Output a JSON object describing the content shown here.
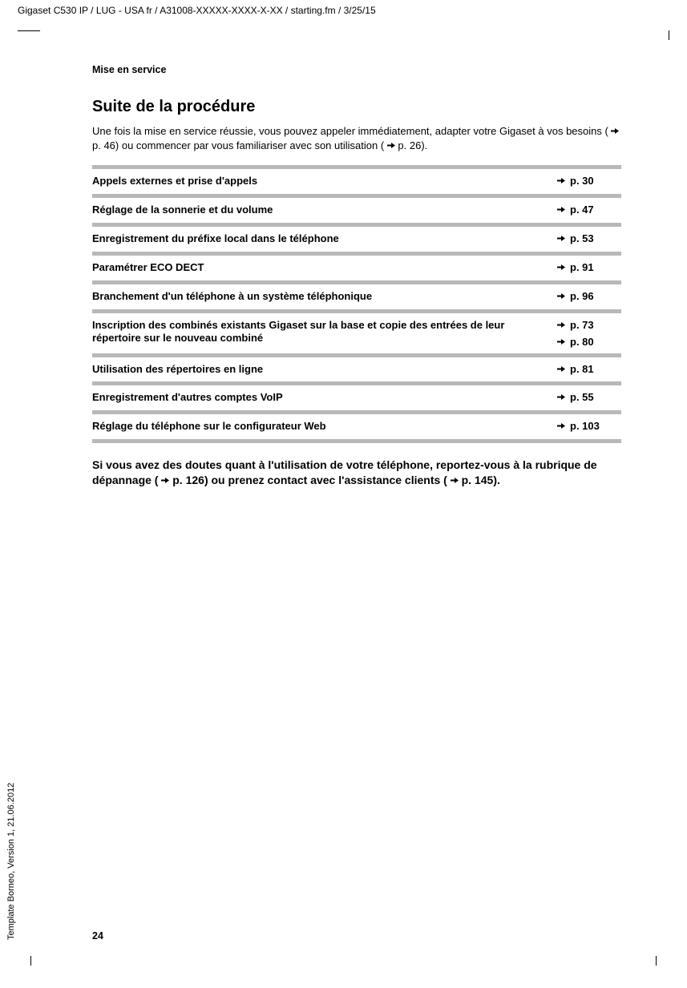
{
  "header": "Gigaset C530 IP / LUG - USA fr / A31008-XXXXX-XXXX-X-XX / starting.fm / 3/25/15",
  "section_label": "Mise en service",
  "heading": "Suite de la procédure",
  "intro_parts": {
    "p1": "Une fois la mise en service réussie, vous pouvez appeler immédiatement, adapter votre Gigaset à vos besoins (",
    "ref1": "p. 46",
    "p2": ") ou commencer par vous familiariser avec son utilisation (",
    "ref2": "p. 26",
    "p3": ")."
  },
  "rows": [
    {
      "label": "Appels externes et prise d'appels",
      "refs": [
        "p. 30"
      ]
    },
    {
      "label": "Réglage de la sonnerie et du volume",
      "refs": [
        "p. 47"
      ]
    },
    {
      "label": "Enregistrement du préfixe local dans le téléphone",
      "refs": [
        "p. 53"
      ]
    },
    {
      "label": "Paramétrer ECO DECT",
      "refs": [
        "p. 91"
      ]
    },
    {
      "label": "Branchement d'un téléphone à un système téléphonique",
      "refs": [
        "p. 96"
      ]
    },
    {
      "label": "Inscription des combinés existants Gigaset sur la base et copie des entrées de leur répertoire sur le nouveau combiné",
      "refs": [
        "p. 73",
        "p. 80"
      ]
    },
    {
      "label": "Utilisation des répertoires en ligne",
      "refs": [
        "p. 81"
      ]
    },
    {
      "label": "Enregistrement d'autres comptes VoIP",
      "refs": [
        "p. 55"
      ]
    },
    {
      "label": "Réglage du téléphone sur le configurateur Web",
      "refs": [
        "p. 103"
      ]
    }
  ],
  "footer_parts": {
    "p1": "Si vous avez des doutes quant à l'utilisation de votre téléphone, reportez-vous à la rubrique de dépannage (",
    "ref1": "p. 126",
    "p2": ") ou prenez contact avec l'assistance clients (",
    "ref2": "p. 145",
    "p3": ")."
  },
  "page_number": "24",
  "side_text": "Template Borneo, Version 1, 21.06.2012",
  "colors": {
    "bar": "#b8b8b8"
  }
}
